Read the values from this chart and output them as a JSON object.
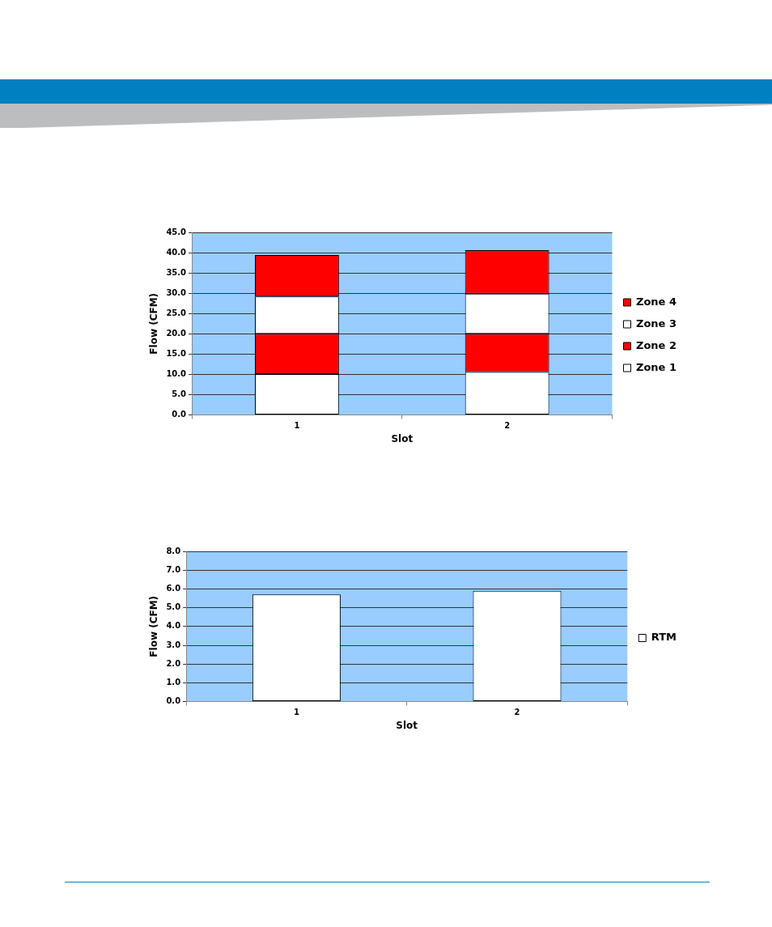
{
  "chart_data": [
    {
      "type": "bar",
      "stacked": true,
      "xlabel": "Slot",
      "ylabel": "Flow (CFM)",
      "categories": [
        "1",
        "2"
      ],
      "ylim": [
        0,
        45
      ],
      "yticks": [
        {
          "value": 0,
          "label": "0.0"
        },
        {
          "value": 5,
          "label": "5.0"
        },
        {
          "value": 10,
          "label": "10.0"
        },
        {
          "value": 15,
          "label": "15.0"
        },
        {
          "value": 20,
          "label": "20.0"
        },
        {
          "value": 25,
          "label": "25.0"
        },
        {
          "value": 30,
          "label": "30.0"
        },
        {
          "value": 35,
          "label": "35.0"
        },
        {
          "value": 40,
          "label": "40.0"
        },
        {
          "value": 45,
          "label": "45.0"
        }
      ],
      "grid": "y",
      "legend": "right",
      "series": [
        {
          "name": "Zone 1",
          "color": "#ffffff",
          "values": [
            10.1,
            10.6
          ]
        },
        {
          "name": "Zone 2",
          "color": "#ff0000",
          "values": [
            9.9,
            9.4
          ]
        },
        {
          "name": "Zone 3",
          "color": "#ffffff",
          "values": [
            9.2,
            9.9
          ]
        },
        {
          "name": "Zone 4",
          "color": "#ff0000",
          "values": [
            10.2,
            10.7
          ]
        }
      ]
    },
    {
      "type": "bar",
      "xlabel": "Slot",
      "ylabel": "Flow (CFM)",
      "categories": [
        "1",
        "2"
      ],
      "ylim": [
        0,
        8
      ],
      "yticks": [
        {
          "value": 0,
          "label": "0.0"
        },
        {
          "value": 1,
          "label": "1.0"
        },
        {
          "value": 2,
          "label": "2.0"
        },
        {
          "value": 3,
          "label": "3.0"
        },
        {
          "value": 4,
          "label": "4.0"
        },
        {
          "value": 5,
          "label": "5.0"
        },
        {
          "value": 6,
          "label": "6.0"
        },
        {
          "value": 7,
          "label": "7.0"
        },
        {
          "value": 8,
          "label": "8.0"
        }
      ],
      "grid": "y",
      "legend": "right",
      "series": [
        {
          "name": "RTM",
          "color": "#ffffff",
          "values": [
            5.7,
            5.9
          ]
        }
      ]
    }
  ]
}
